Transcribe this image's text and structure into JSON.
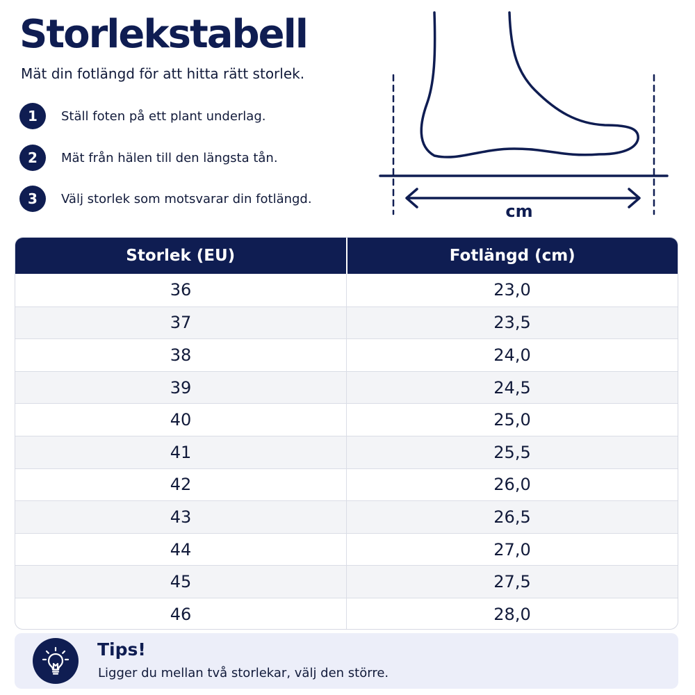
{
  "header": {
    "title": "Storlekstabell",
    "subtitle": "Mät din fotlängd för att hitta rätt storlek."
  },
  "steps": [
    {
      "number": "1",
      "text": "Ställ foten på ett plant underlag."
    },
    {
      "number": "2",
      "text": "Mät från hälen till den längsta tån."
    },
    {
      "number": "3",
      "text": "Välj storlek som motsvarar din fotlängd."
    }
  ],
  "illustration": {
    "unit_label": "cm",
    "icon": "foot-measurement-icon",
    "color": "#0f1d52"
  },
  "table": {
    "headers": [
      "Storlek (EU)",
      "Fotlängd (cm)"
    ],
    "rows": [
      [
        "36",
        "23,0"
      ],
      [
        "37",
        "23,5"
      ],
      [
        "38",
        "24,0"
      ],
      [
        "39",
        "24,5"
      ],
      [
        "40",
        "25,0"
      ],
      [
        "41",
        "25,5"
      ],
      [
        "42",
        "26,0"
      ],
      [
        "43",
        "26,5"
      ],
      [
        "44",
        "27,0"
      ],
      [
        "45",
        "27,5"
      ],
      [
        "46",
        "28,0"
      ]
    ]
  },
  "tips": {
    "icon": "lightbulb-icon",
    "title": "Tips!",
    "text": "Ligger du mellan två storlekar, välj den större."
  },
  "colors": {
    "navy": "#0f1d52",
    "row_alt": "#f3f4f7",
    "tips_bg": "#eceef9"
  }
}
